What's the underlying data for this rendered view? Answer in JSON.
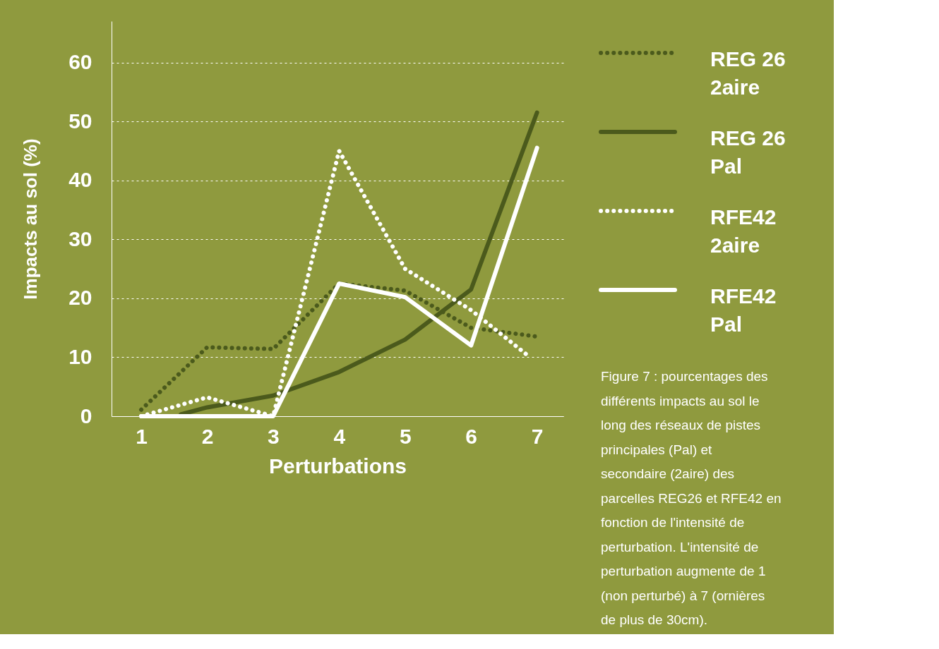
{
  "chart_data": {
    "type": "line",
    "xlabel": "Perturbations",
    "ylabel": "Impacts au sol (%)",
    "xlim": [
      0.55,
      7.4
    ],
    "xticks": [
      1,
      2,
      3,
      4,
      5,
      6,
      7
    ],
    "ylim": [
      0,
      67
    ],
    "yticks": [
      0,
      10,
      20,
      30,
      40,
      50,
      60
    ],
    "grid": "y",
    "legend": "right",
    "marker": "none",
    "x": [
      1,
      2,
      3,
      4,
      5,
      6,
      7
    ],
    "series": [
      {
        "name": "REG 26 2aire",
        "color": "#4b5a1c",
        "line_style": "dotted",
        "values": [
          1.1,
          11.7,
          11.4,
          22.5,
          21.3,
          15,
          13.5
        ]
      },
      {
        "name": "REG 26 Pal",
        "color": "#4b5a1c",
        "line_style": "solid",
        "x": [
          1.6,
          2,
          3,
          4,
          5,
          6,
          7
        ],
        "values": [
          0.3,
          1.5,
          3.5,
          7.5,
          13,
          21.5,
          51.5
        ]
      },
      {
        "name": "RFE42 2aire",
        "color": "#ffffff",
        "line_style": "dotted",
        "x": [
          1,
          2,
          3,
          4,
          5,
          6,
          6.86
        ],
        "values": [
          0,
          3.2,
          0,
          45,
          25,
          18,
          10.3
        ]
      },
      {
        "name": "RFE42 Pal",
        "color": "#ffffff",
        "line_style": "solid",
        "values": [
          0,
          0,
          0,
          22.5,
          20.2,
          12,
          45.5
        ]
      }
    ],
    "annotations": [
      "Figure 7 : pourcentages des différents impacts au sol le long des réseaux de pistes principales (Pal) et secondaire (2aire) des parcelles REG26 et RFE42 en fonction de l'intensité de perturbation. L'intensité de perturbation augmente de 1 (non perturbé) à 7 (ornières de plus de 30cm)."
    ]
  }
}
